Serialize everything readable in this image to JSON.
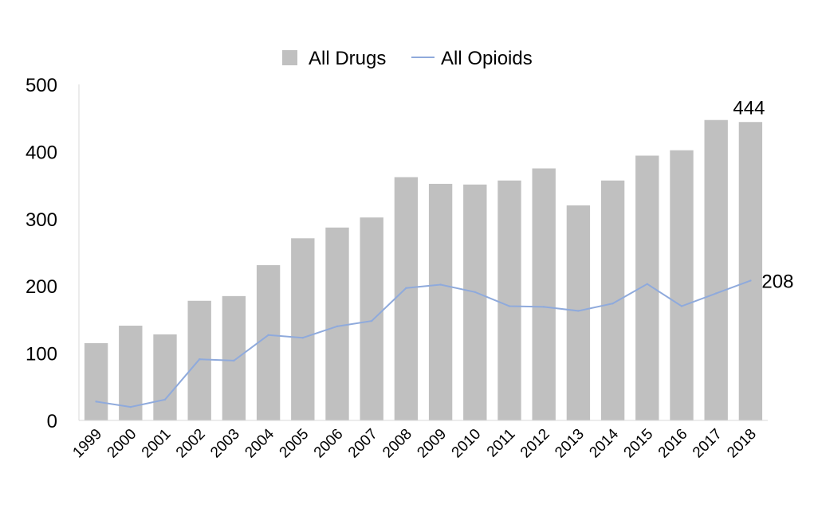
{
  "chart_data": {
    "type": "bar",
    "categories": [
      "1999",
      "2000",
      "2001",
      "2002",
      "2003",
      "2004",
      "2005",
      "2006",
      "2007",
      "2008",
      "2009",
      "2010",
      "2011",
      "2012",
      "2013",
      "2014",
      "2015",
      "2016",
      "2017",
      "2018"
    ],
    "series": [
      {
        "name": "All Drugs",
        "type": "bar",
        "color": "#c0c0c0",
        "values": [
          115,
          141,
          128,
          178,
          185,
          231,
          271,
          287,
          302,
          362,
          352,
          351,
          357,
          375,
          320,
          357,
          394,
          402,
          447,
          444
        ]
      },
      {
        "name": "All Opioids",
        "type": "line",
        "color": "#8faadc",
        "values": [
          28,
          20,
          31,
          91,
          89,
          127,
          123,
          140,
          148,
          197,
          202,
          191,
          170,
          169,
          163,
          174,
          203,
          170,
          189,
          208
        ]
      }
    ],
    "ylim": [
      0,
      500
    ],
    "yticks": [
      "0",
      "100",
      "200",
      "300",
      "400",
      "500"
    ],
    "data_labels": [
      {
        "series": "All Drugs",
        "index": 19,
        "text": "444"
      },
      {
        "series": "All Opioids",
        "index": 19,
        "text": "208"
      }
    ],
    "legend_position": "top-center",
    "grid": false,
    "title": "",
    "xlabel": "",
    "ylabel": ""
  }
}
